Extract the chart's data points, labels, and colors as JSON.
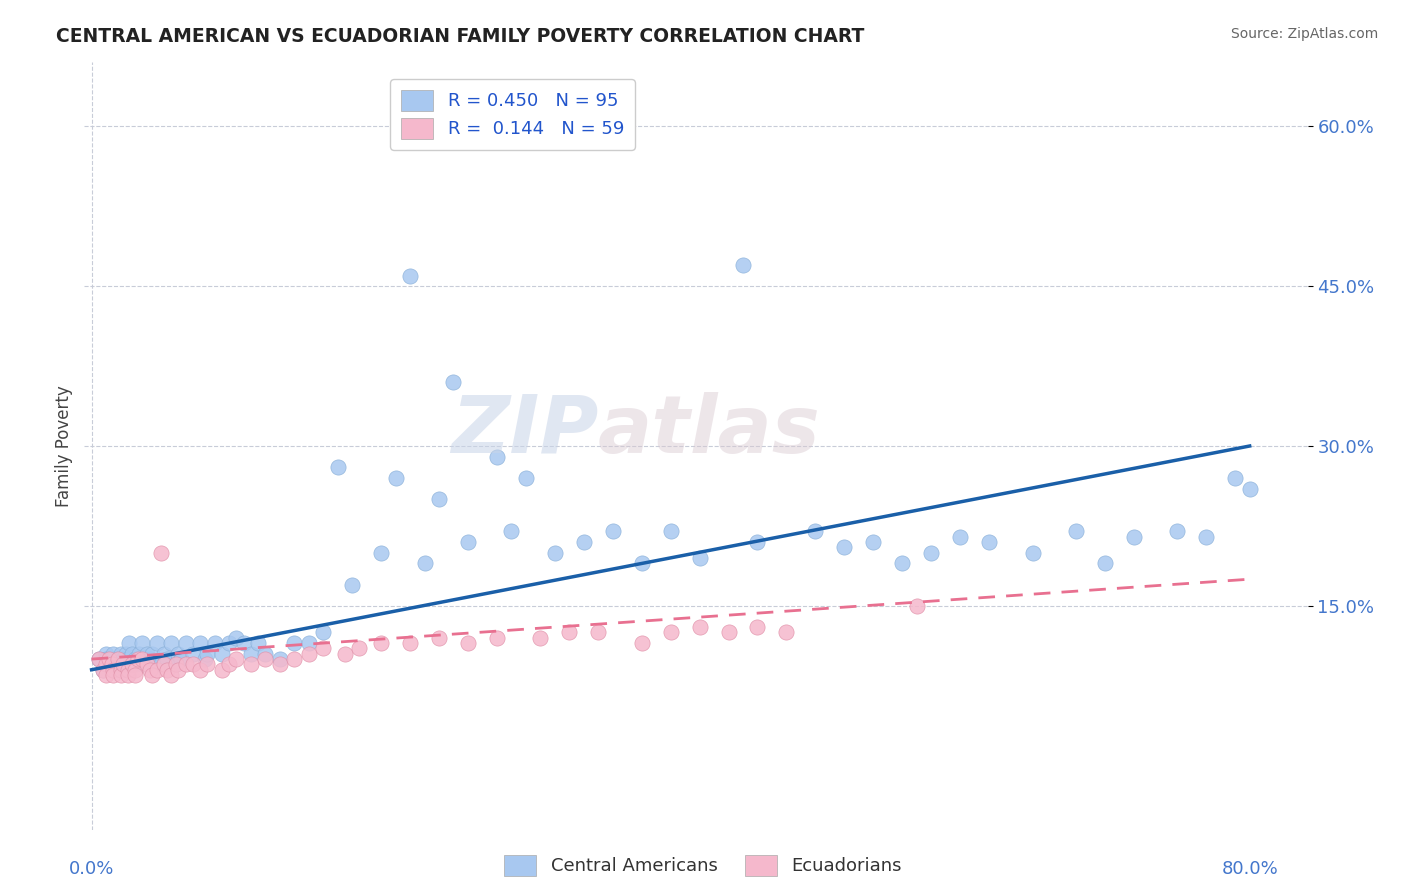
{
  "title": "CENTRAL AMERICAN VS ECUADORIAN FAMILY POVERTY CORRELATION CHART",
  "source": "Source: ZipAtlas.com",
  "ylabel": "Family Poverty",
  "color_blue": "#a8c8f0",
  "color_pink": "#f5b8cc",
  "line_blue": "#1a5fa8",
  "line_pink": "#e87090",
  "background_color": "#ffffff",
  "grid_color": "#c8ccd8",
  "watermark_zip": "ZIP",
  "watermark_atlas": "atlas",
  "legend_text1": "R = 0.450   N = 95",
  "legend_text2": "R =  0.144   N = 59",
  "ytick_vals": [
    0.15,
    0.3,
    0.45,
    0.6
  ],
  "ytick_labels": [
    "15.0%",
    "30.0%",
    "45.0%",
    "60.0%"
  ],
  "xlim": [
    -0.005,
    0.84
  ],
  "ylim": [
    -0.06,
    0.66
  ],
  "ca_line_x": [
    0.0,
    0.8
  ],
  "ca_line_y": [
    0.09,
    0.3
  ],
  "ec_line_x": [
    0.0,
    0.8
  ],
  "ec_line_y": [
    0.1,
    0.175
  ],
  "ca_points_x": [
    0.005,
    0.008,
    0.01,
    0.01,
    0.01,
    0.012,
    0.013,
    0.015,
    0.015,
    0.015,
    0.017,
    0.018,
    0.018,
    0.02,
    0.02,
    0.02,
    0.02,
    0.022,
    0.022,
    0.023,
    0.024,
    0.025,
    0.025,
    0.026,
    0.028,
    0.028,
    0.03,
    0.03,
    0.032,
    0.033,
    0.035,
    0.035,
    0.038,
    0.04,
    0.042,
    0.045,
    0.048,
    0.05,
    0.052,
    0.055,
    0.058,
    0.06,
    0.062,
    0.065,
    0.07,
    0.075,
    0.078,
    0.08,
    0.085,
    0.09,
    0.095,
    0.1,
    0.105,
    0.11,
    0.115,
    0.12,
    0.13,
    0.14,
    0.15,
    0.16,
    0.17,
    0.18,
    0.2,
    0.21,
    0.22,
    0.23,
    0.24,
    0.25,
    0.26,
    0.28,
    0.29,
    0.3,
    0.32,
    0.34,
    0.36,
    0.38,
    0.4,
    0.42,
    0.45,
    0.46,
    0.5,
    0.52,
    0.54,
    0.56,
    0.58,
    0.6,
    0.62,
    0.65,
    0.68,
    0.7,
    0.72,
    0.75,
    0.77,
    0.79,
    0.8
  ],
  "ca_points_y": [
    0.1,
    0.09,
    0.095,
    0.105,
    0.1,
    0.1,
    0.095,
    0.09,
    0.1,
    0.105,
    0.095,
    0.1,
    0.1,
    0.09,
    0.095,
    0.1,
    0.105,
    0.1,
    0.095,
    0.1,
    0.105,
    0.1,
    0.095,
    0.115,
    0.095,
    0.105,
    0.095,
    0.1,
    0.1,
    0.105,
    0.095,
    0.115,
    0.105,
    0.1,
    0.105,
    0.115,
    0.095,
    0.105,
    0.1,
    0.115,
    0.095,
    0.105,
    0.1,
    0.115,
    0.105,
    0.115,
    0.1,
    0.105,
    0.115,
    0.105,
    0.115,
    0.12,
    0.115,
    0.105,
    0.115,
    0.105,
    0.1,
    0.115,
    0.115,
    0.125,
    0.28,
    0.17,
    0.2,
    0.27,
    0.46,
    0.19,
    0.25,
    0.36,
    0.21,
    0.29,
    0.22,
    0.27,
    0.2,
    0.21,
    0.22,
    0.19,
    0.22,
    0.195,
    0.47,
    0.21,
    0.22,
    0.205,
    0.21,
    0.19,
    0.2,
    0.215,
    0.21,
    0.2,
    0.22,
    0.19,
    0.215,
    0.22,
    0.215,
    0.27,
    0.26
  ],
  "ec_points_x": [
    0.005,
    0.008,
    0.01,
    0.01,
    0.012,
    0.014,
    0.015,
    0.015,
    0.018,
    0.02,
    0.02,
    0.022,
    0.025,
    0.025,
    0.028,
    0.03,
    0.03,
    0.032,
    0.035,
    0.038,
    0.04,
    0.042,
    0.045,
    0.048,
    0.05,
    0.052,
    0.055,
    0.058,
    0.06,
    0.065,
    0.07,
    0.075,
    0.08,
    0.09,
    0.095,
    0.1,
    0.11,
    0.12,
    0.13,
    0.14,
    0.15,
    0.16,
    0.175,
    0.185,
    0.2,
    0.22,
    0.24,
    0.26,
    0.28,
    0.31,
    0.33,
    0.35,
    0.38,
    0.4,
    0.42,
    0.44,
    0.46,
    0.48,
    0.57
  ],
  "ec_points_y": [
    0.1,
    0.09,
    0.095,
    0.085,
    0.1,
    0.095,
    0.09,
    0.085,
    0.1,
    0.09,
    0.085,
    0.095,
    0.09,
    0.085,
    0.095,
    0.09,
    0.085,
    0.1,
    0.1,
    0.095,
    0.09,
    0.085,
    0.09,
    0.2,
    0.095,
    0.09,
    0.085,
    0.095,
    0.09,
    0.095,
    0.095,
    0.09,
    0.095,
    0.09,
    0.095,
    0.1,
    0.095,
    0.1,
    0.095,
    0.1,
    0.105,
    0.11,
    0.105,
    0.11,
    0.115,
    0.115,
    0.12,
    0.115,
    0.12,
    0.12,
    0.125,
    0.125,
    0.115,
    0.125,
    0.13,
    0.125,
    0.13,
    0.125,
    0.15
  ]
}
